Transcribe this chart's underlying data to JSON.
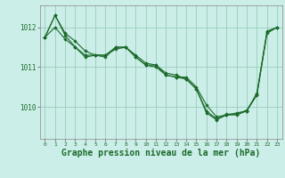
{
  "background_color": "#cceee8",
  "grid_color": "#99ccbb",
  "line_color": "#1a6b2a",
  "marker_color": "#1a6b2a",
  "xlabel": "Graphe pression niveau de la mer (hPa)",
  "xlabel_fontsize": 7,
  "xtick_labels": [
    "0",
    "1",
    "2",
    "3",
    "4",
    "5",
    "6",
    "7",
    "8",
    "9",
    "10",
    "11",
    "12",
    "13",
    "14",
    "15",
    "16",
    "17",
    "18",
    "19",
    "20",
    "21",
    "22",
    "23"
  ],
  "ytick_values": [
    1010,
    1011,
    1012
  ],
  "ylim": [
    1009.2,
    1012.55
  ],
  "xlim": [
    -0.5,
    23.5
  ],
  "series": [
    [
      1011.75,
      1012.3,
      1011.85,
      1011.65,
      1011.4,
      1011.3,
      1011.3,
      1011.5,
      1011.5,
      1011.25,
      1011.05,
      1011.05,
      1010.8,
      1010.75,
      1010.75,
      1010.5,
      1010.05,
      1009.75,
      1009.8,
      1009.85,
      1009.9,
      1010.35,
      1011.9,
      1012.0
    ],
    [
      1011.75,
      1012.0,
      1011.7,
      1011.5,
      1011.25,
      1011.3,
      1011.3,
      1011.45,
      1011.5,
      1011.3,
      1011.1,
      1011.05,
      1010.85,
      1010.8,
      1010.7,
      1010.45,
      1009.85,
      1009.68,
      1009.8,
      1009.8,
      1009.9,
      1010.3,
      1011.85,
      1012.0
    ],
    [
      1011.75,
      1012.3,
      1011.8,
      1011.5,
      1011.3,
      1011.3,
      1011.25,
      1011.5,
      1011.5,
      1011.25,
      1011.05,
      1011.0,
      1010.8,
      1010.75,
      1010.7,
      1010.45,
      1009.9,
      1009.7,
      1009.82,
      1009.82,
      1009.92,
      1010.32,
      1011.87,
      1012.0
    ]
  ]
}
